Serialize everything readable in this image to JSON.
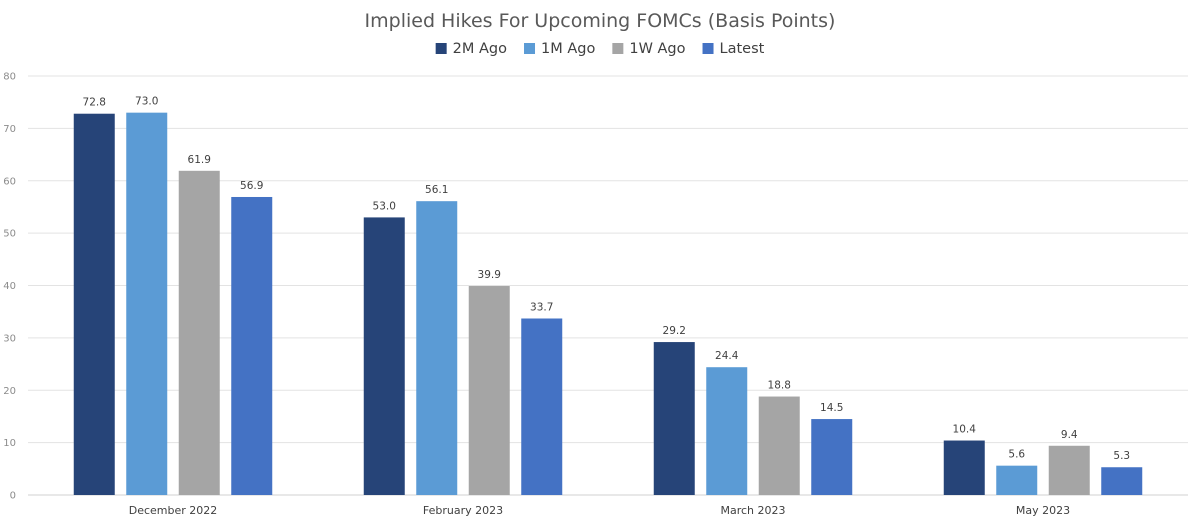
{
  "chart_data": {
    "type": "bar",
    "title": "Implied Hikes For Upcoming FOMCs (Basis Points)",
    "xlabel": "",
    "ylabel": "",
    "ylim": [
      0,
      80
    ],
    "yticks": [
      0,
      10,
      20,
      30,
      40,
      50,
      60,
      70,
      80
    ],
    "grid": true,
    "legend_position": "top",
    "categories": [
      "December 2022",
      "February 2023",
      "March 2023",
      "May 2023"
    ],
    "series": [
      {
        "name": "2M Ago",
        "color": "#264478",
        "values": [
          72.8,
          53.0,
          29.2,
          10.4
        ]
      },
      {
        "name": "1M Ago",
        "color": "#5b9bd5",
        "values": [
          73.0,
          56.1,
          24.4,
          5.6
        ]
      },
      {
        "name": "1W Ago",
        "color": "#a5a5a5",
        "values": [
          61.9,
          39.9,
          18.8,
          9.4
        ]
      },
      {
        "name": "Latest",
        "color": "#4472c4",
        "values": [
          56.9,
          33.7,
          14.5,
          5.3
        ]
      }
    ]
  }
}
